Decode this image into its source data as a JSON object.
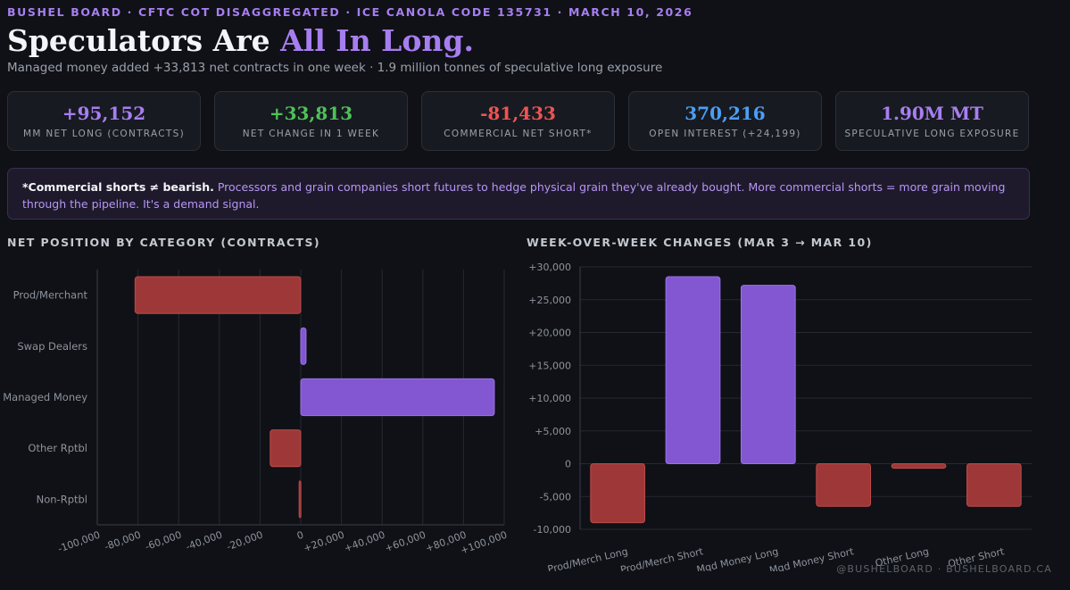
{
  "header": {
    "eyebrow": "BUSHEL BOARD · CFTC COT DISAGGREGATED · ICE CANOLA CODE 135731 · MARCH 10, 2026",
    "headline_main": "Speculators Are ",
    "headline_accent": "All In Long.",
    "subhead": "Managed money added +33,813 net contracts in one week · 1.9 million tonnes of speculative long exposure"
  },
  "stats": [
    {
      "value": "+95,152",
      "label": "MM NET LONG (CONTRACTS)",
      "color": "#a77ef0"
    },
    {
      "value": "+33,813",
      "label": "NET CHANGE IN 1 WEEK",
      "color": "#4fc158"
    },
    {
      "value": "-81,433",
      "label": "COMMERCIAL NET SHORT*",
      "color": "#ef5353"
    },
    {
      "value": "370,216",
      "label": "OPEN INTEREST (+24,199)",
      "color": "#4c9ef5"
    },
    {
      "value": "1.90M MT",
      "label": "SPECULATIVE LONG EXPOSURE",
      "color": "#a77ef0"
    }
  ],
  "note": {
    "strong": "*Commercial shorts ≠ bearish.",
    "text": " Processors and grain companies short futures to hedge physical grain they've already bought. More commercial shorts = more grain moving through the pipeline. It's a demand signal."
  },
  "colors": {
    "positive": "#8357d1",
    "negative": "#9e3838",
    "grid": "#252932",
    "axis_text": "#8e939e"
  },
  "chart_data": [
    {
      "type": "bar",
      "orientation": "horizontal",
      "title": "NET POSITION BY CATEGORY (CONTRACTS)",
      "categories": [
        "Prod/Merchant",
        "Swap Dealers",
        "Managed Money",
        "Other Rptbl",
        "Non-Rptbl"
      ],
      "values": [
        -81433,
        2600,
        95152,
        -15000,
        -800
      ],
      "xlim": [
        -100000,
        100000
      ],
      "ticks": [
        -100000,
        -80000,
        -60000,
        -40000,
        -20000,
        0,
        20000,
        40000,
        60000,
        80000,
        100000
      ],
      "tick_labels": [
        "-100,000",
        "-80,000",
        "-60,000",
        "-40,000",
        "-20,000",
        "0",
        "+20,000",
        "+40,000",
        "+60,000",
        "+80,000",
        "+100,000"
      ],
      "grid": true
    },
    {
      "type": "bar",
      "orientation": "vertical",
      "title": "WEEK-OVER-WEEK CHANGES (MAR 3 → MAR 10)",
      "categories": [
        "Prod/Merch Long",
        "Prod/Merch Short",
        "Mgd Money Long",
        "Mgd Money Short",
        "Other Long",
        "Other Short"
      ],
      "values": [
        -9000,
        28500,
        27200,
        -6500,
        -700,
        -6500
      ],
      "ylim": [
        -10000,
        30000
      ],
      "ticks": [
        -10000,
        -5000,
        0,
        5000,
        10000,
        15000,
        20000,
        25000,
        30000
      ],
      "tick_labels": [
        "-10,000",
        "-5,000",
        "0",
        "+5,000",
        "+10,000",
        "+15,000",
        "+20,000",
        "+25,000",
        "+30,000"
      ],
      "grid": true
    }
  ],
  "footer": "@BUSHELBOARD · BUSHELBOARD.CA"
}
